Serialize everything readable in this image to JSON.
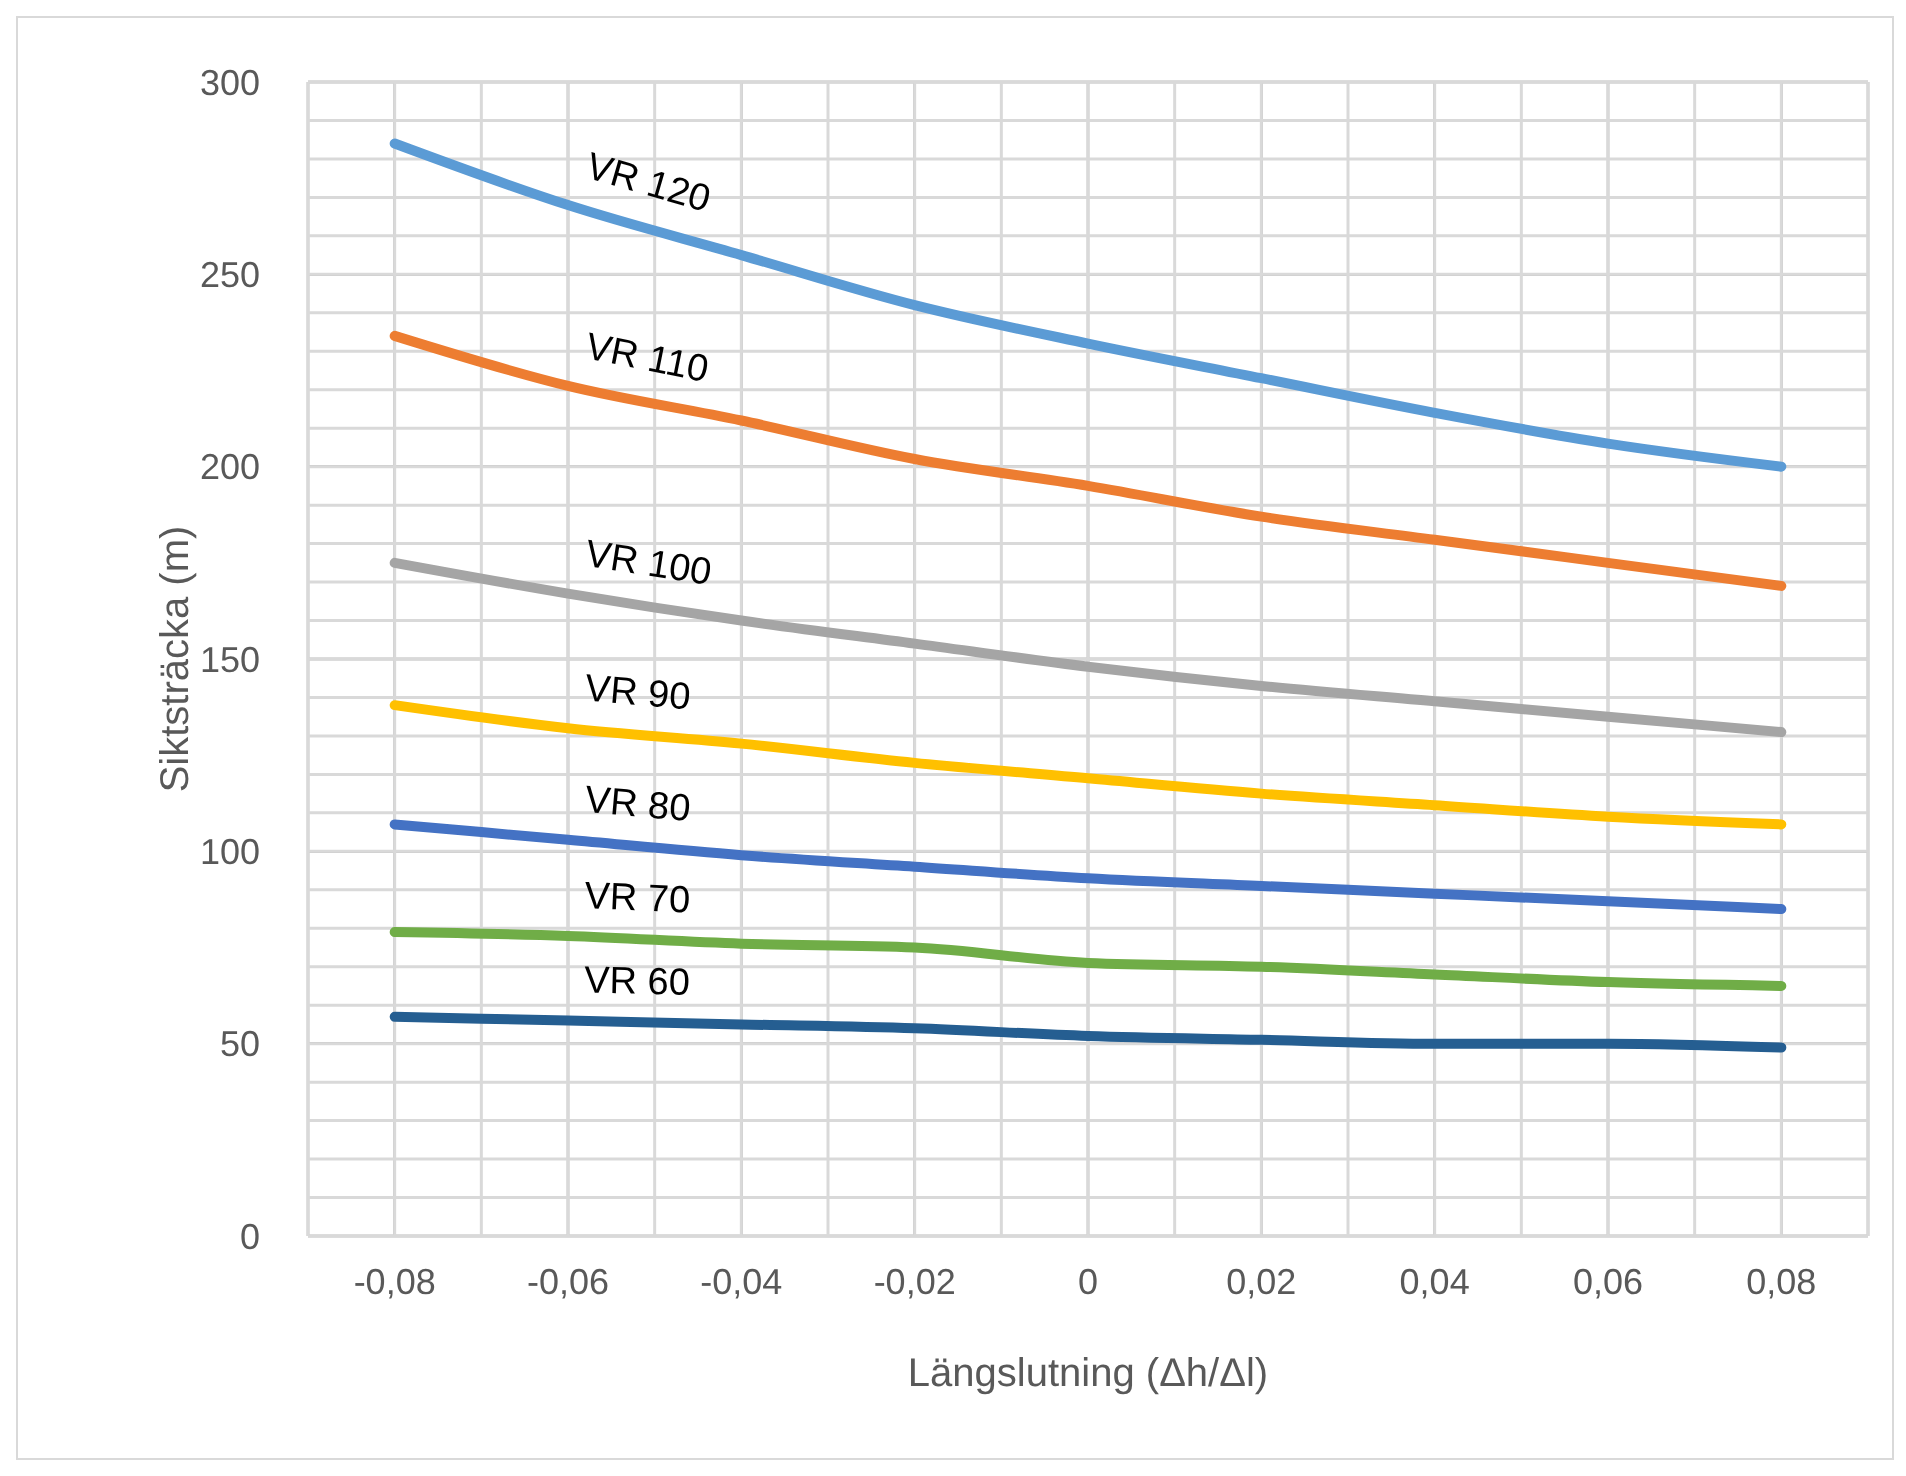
{
  "chart_data": {
    "type": "line",
    "xlabel": "Längslutning (Δh/Δl)",
    "ylabel": "Siktsträcka (m)",
    "x": [
      -0.08,
      -0.06,
      -0.04,
      -0.02,
      0,
      0.02,
      0.04,
      0.06,
      0.08
    ],
    "xlim": [
      -0.09,
      0.09
    ],
    "xticks": [
      {
        "value": -0.08,
        "label": "-0,08"
      },
      {
        "value": -0.06,
        "label": "-0,06"
      },
      {
        "value": -0.04,
        "label": "-0,04"
      },
      {
        "value": -0.02,
        "label": "-0,02"
      },
      0,
      {
        "value": 0.02,
        "label": "0,02"
      },
      {
        "value": 0.04,
        "label": "0,04"
      },
      {
        "value": 0.06,
        "label": "0,06"
      },
      {
        "value": 0.08,
        "label": "0,08"
      }
    ],
    "ylim": [
      0,
      300
    ],
    "yticks": [
      0,
      50,
      100,
      150,
      200,
      250,
      300
    ],
    "grid": true,
    "legend": false,
    "marker": "none",
    "line_style": "solid",
    "series": [
      {
        "name": "VR 120",
        "color": "#5b9bd5",
        "values": [
          284,
          268,
          255,
          242,
          232,
          223,
          214,
          206,
          200
        ]
      },
      {
        "name": "VR 110",
        "color": "#ed7d31",
        "values": [
          234,
          221,
          212,
          202,
          195,
          187,
          181,
          175,
          169
        ]
      },
      {
        "name": "VR 100",
        "color": "#a5a5a5",
        "values": [
          175,
          167,
          160,
          154,
          148,
          143,
          139,
          135,
          131
        ]
      },
      {
        "name": "VR 90",
        "color": "#ffc000",
        "values": [
          138,
          132,
          128,
          123,
          119,
          115,
          112,
          109,
          107
        ]
      },
      {
        "name": "VR 80",
        "color": "#4472c4",
        "values": [
          107,
          103,
          99,
          96,
          93,
          91,
          89,
          87,
          85
        ]
      },
      {
        "name": "VR 70",
        "color": "#70ad47",
        "values": [
          79,
          78,
          76,
          75,
          71,
          70,
          68,
          66,
          65
        ]
      },
      {
        "name": "VR 60",
        "color": "#255e91",
        "values": [
          57,
          56,
          55,
          54,
          52,
          51,
          50,
          50,
          49
        ]
      }
    ]
  }
}
